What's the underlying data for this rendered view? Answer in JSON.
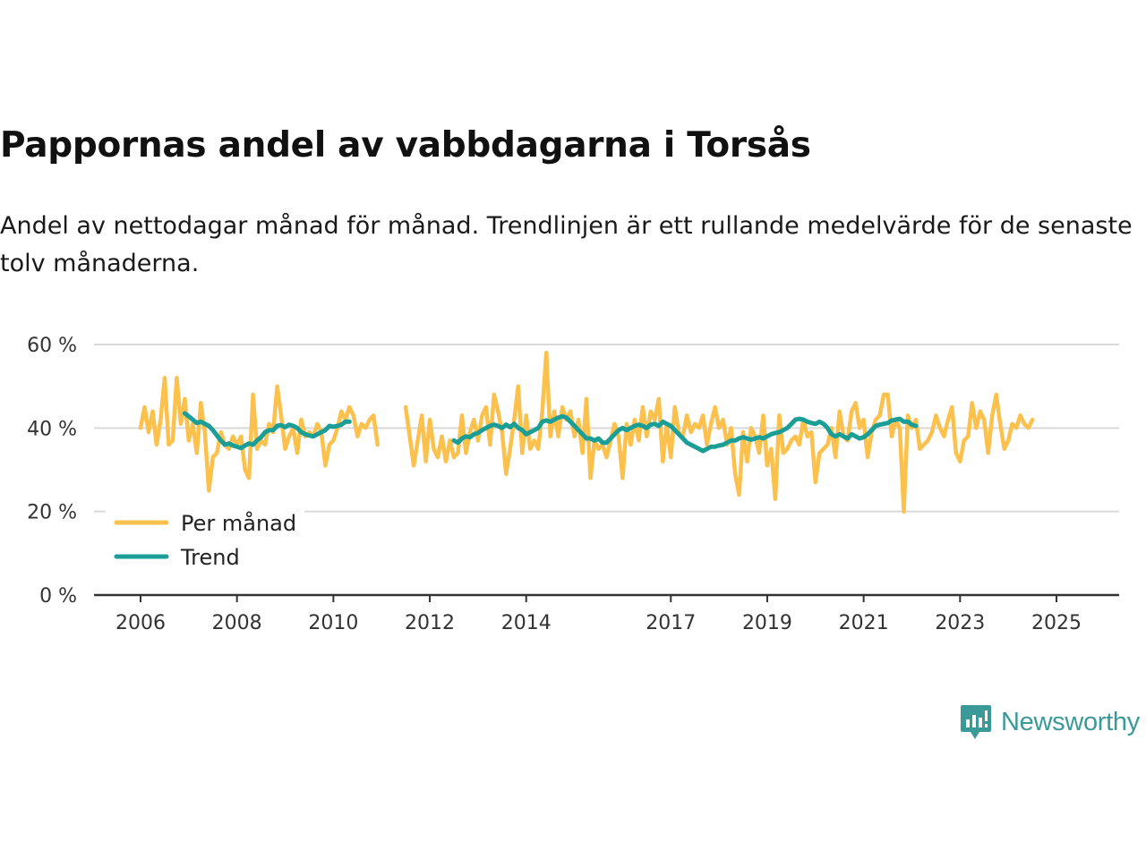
{
  "title": "Pappornas andel av vabbdagarna i Torsås",
  "subtitle": "Andel av nettodagar månad för månad. Trendlinjen är ett rullande medelvärde för de senaste tolv månaderna.",
  "brand": {
    "name": "Newsworthy",
    "color": "#3a9a98"
  },
  "colors": {
    "monthly": "#fcc14d",
    "trend": "#1a9e96",
    "grid": "#d9d9d9",
    "axis": "#333333"
  },
  "chart_data": {
    "type": "line",
    "title": "Pappornas andel av vabbdagarna i Torsås",
    "ylabel": "",
    "xlabel": "",
    "ylim": [
      0,
      60
    ],
    "y_ticks": [
      {
        "value": 0,
        "label": "0 %"
      },
      {
        "value": 20,
        "label": "20 %"
      },
      {
        "value": 40,
        "label": "40 %"
      },
      {
        "value": 60,
        "label": "60 %"
      }
    ],
    "x_range": [
      2006,
      2025.55
    ],
    "x_ticks": [
      {
        "value": 2006,
        "label": "2006"
      },
      {
        "value": 2008,
        "label": "2008"
      },
      {
        "value": 2010,
        "label": "2010"
      },
      {
        "value": 2012,
        "label": "2012"
      },
      {
        "value": 2014,
        "label": "2014"
      },
      {
        "value": 2017,
        "label": "2017"
      },
      {
        "value": 2019,
        "label": "2019"
      },
      {
        "value": 2021,
        "label": "2021"
      },
      {
        "value": 2023,
        "label": "2023"
      },
      {
        "value": 2025,
        "label": "2025"
      }
    ],
    "legend": {
      "position": "bottom-left",
      "entries": [
        "Per månad",
        "Trend"
      ]
    },
    "series": [
      {
        "name": "Per månad",
        "segments": [
          {
            "start": 2006.0,
            "values": [
              40,
              45,
              39,
              44,
              36,
              42,
              52,
              36,
              37,
              52,
              41,
              47,
              37,
              41,
              34,
              46,
              39,
              25,
              33,
              34,
              39,
              36,
              35,
              38,
              36,
              38,
              30,
              28,
              48,
              35,
              37,
              36,
              41,
              39,
              50,
              43,
              35,
              38,
              40,
              34,
              42,
              38,
              39,
              38,
              41,
              39,
              31,
              36,
              37,
              40,
              44,
              42,
              45,
              43,
              38,
              41,
              40,
              42,
              43,
              36
            ]
          },
          {
            "start": 2011.5,
            "values": [
              45,
              38,
              31,
              37,
              43,
              32,
              42,
              35,
              33,
              38,
              32,
              37,
              33,
              34,
              43,
              34,
              39,
              42,
              37,
              43,
              45,
              36,
              48,
              44,
              39,
              29,
              35,
              42,
              50,
              34,
              43,
              35,
              37,
              35,
              44,
              58,
              38,
              44,
              38,
              45,
              42,
              44,
              38,
              42,
              34,
              47,
              28,
              37,
              35,
              36,
              33,
              37,
              41,
              38,
              28,
              41,
              36,
              42,
              37,
              45,
              38,
              44,
              42,
              47,
              32,
              41,
              33,
              45,
              39,
              38,
              43,
              39,
              41,
              40,
              43,
              36,
              41,
              45,
              40,
              42,
              36,
              40,
              29,
              24,
              39,
              32,
              40,
              38,
              34,
              43,
              31,
              35,
              23,
              43,
              34,
              35,
              37,
              38,
              36,
              42,
              38,
              39,
              27,
              34,
              35,
              36,
              40,
              33,
              44,
              38,
              37,
              44,
              46,
              40,
              42,
              33,
              39,
              42,
              43,
              48,
              48,
              38,
              42,
              40,
              20,
              43,
              40,
              42,
              35,
              36,
              37,
              39,
              43,
              40,
              38,
              42,
              45,
              34,
              32,
              37,
              38,
              46,
              40,
              44,
              42,
              34,
              43,
              48,
              41,
              35,
              37,
              41,
              40,
              43,
              41,
              40,
              42
            ]
          }
        ]
      },
      {
        "name": "Trend",
        "segments": [
          {
            "start": 2006.9167,
            "values": [
              43.5,
              42.8,
              42.0,
              41.2,
              41.5,
              41.0,
              40.5,
              39.5,
              38.2,
              37.0,
              36.0,
              36.3,
              35.8,
              35.5,
              35.2,
              35.8,
              36.3,
              36.0,
              37.0,
              37.8,
              39.0,
              39.5,
              39.5,
              40.5,
              40.7,
              40.2,
              40.8,
              40.5,
              40.0,
              39.0,
              38.5,
              38.2,
              38.0,
              38.5,
              39.0,
              39.5,
              40.5,
              40.3,
              40.5,
              40.8,
              41.5,
              41.5
            ]
          },
          {
            "start": 2012.5,
            "values": [
              37.0,
              36.5,
              37.5,
              38.0,
              37.8,
              38.5,
              38.8,
              39.5,
              40.0,
              40.5,
              40.8,
              40.5,
              40.0,
              40.8,
              40.2,
              41.0,
              40.0,
              39.5,
              38.5,
              39.0,
              39.5,
              40.0,
              41.5,
              41.8,
              41.5,
              42.0,
              42.5,
              42.8,
              42.5,
              41.5,
              40.5,
              39.5,
              38.5,
              37.5,
              37.5,
              37.0,
              37.5,
              36.5,
              36.5,
              37.5,
              38.5,
              39.5,
              40.0,
              39.5,
              40.0,
              40.5,
              40.8,
              40.5,
              40.0,
              40.8,
              41.0,
              40.5,
              41.5,
              41.0,
              40.5,
              39.5,
              38.5,
              37.5,
              36.5,
              36.0,
              35.5,
              35.0,
              34.5,
              35.0,
              35.5,
              35.5,
              35.8,
              36.0,
              36.5,
              37.0,
              37.0,
              37.5,
              37.8,
              37.5,
              37.2,
              37.5,
              37.8,
              37.5,
              38.0,
              38.5,
              38.8,
              39.0,
              39.5,
              40.0,
              41.0,
              42.0,
              42.2,
              42.0,
              41.5,
              41.2,
              41.0,
              41.5,
              41.0,
              40.0,
              38.5,
              38.0,
              38.5,
              38.0,
              37.5,
              38.5,
              38.0,
              37.5,
              37.8,
              38.5,
              39.5,
              40.5,
              40.8,
              41.0,
              41.2,
              41.8,
              42.0,
              42.2,
              41.5,
              41.5,
              40.8,
              40.5
            ]
          }
        ]
      }
    ]
  }
}
